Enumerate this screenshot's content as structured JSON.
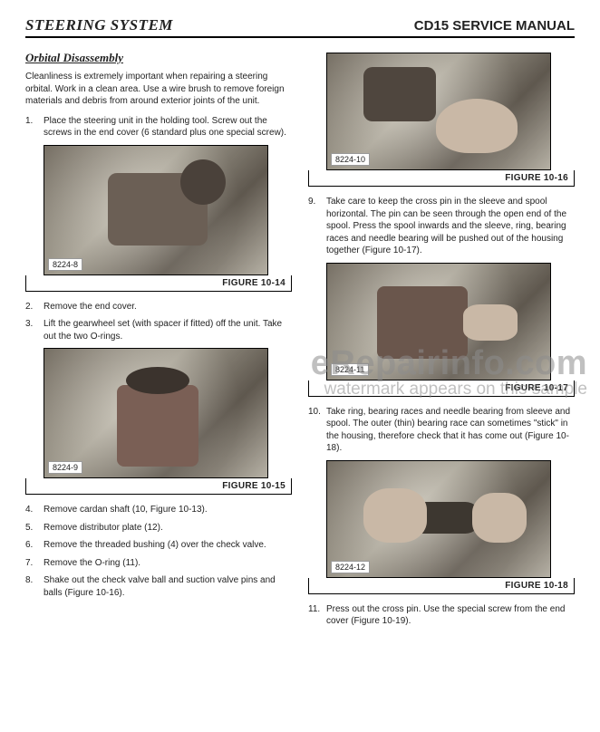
{
  "header": {
    "left": "STEERING SYSTEM",
    "right": "CD15 SERVICE MANUAL"
  },
  "subsection_title": "Orbital Disassembly",
  "intro_text": "Cleanliness is extremely important when repairing a steering orbital. Work in a clean area. Use a wire brush to remove foreign materials and debris from around exterior joints of the unit.",
  "left_steps_a": [
    {
      "num": "1.",
      "text": "Place the steering unit in the holding tool. Screw out the screws in the end cover (6 standard plus one special screw)."
    }
  ],
  "left_steps_b": [
    {
      "num": "2.",
      "text": "Remove the end cover."
    },
    {
      "num": "3.",
      "text": "Lift the gearwheel set (with spacer if fitted) off the unit. Take out the two O-rings."
    }
  ],
  "left_steps_c": [
    {
      "num": "4.",
      "text": "Remove cardan shaft (10, Figure 10-13)."
    },
    {
      "num": "5.",
      "text": "Remove distributor plate (12)."
    },
    {
      "num": "6.",
      "text": "Remove the threaded bushing (4) over the check valve."
    },
    {
      "num": "7.",
      "text": "Remove the O-ring (11)."
    },
    {
      "num": "8.",
      "text": "Shake out the check valve ball and suction valve pins and balls (Figure 10-16)."
    }
  ],
  "right_steps_a": [
    {
      "num": "9.",
      "text": "Take care to keep the cross pin in the sleeve and spool horizontal. The pin can be seen through the open end of the spool. Press the spool inwards and the sleeve, ring, bearing races and needle bearing will be pushed out of the housing together (Figure 10-17)."
    }
  ],
  "right_steps_b": [
    {
      "num": "10.",
      "text": "Take ring, bearing races and needle bearing from sleeve and spool. The outer (thin) bearing race can sometimes \"stick\" in the housing, therefore check that it has come out (Figure 10-18)."
    }
  ],
  "right_steps_c": [
    {
      "num": "11.",
      "text": "Press out the cross pin. Use the special screw from the end cover (Figure 10-19)."
    }
  ],
  "figures": {
    "f14": {
      "caption": "FIGURE 10-14",
      "label": "8224-8"
    },
    "f15": {
      "caption": "FIGURE 10-15",
      "label": "8224-9"
    },
    "f16": {
      "caption": "FIGURE 10-16",
      "label": "8224-10"
    },
    "f17": {
      "caption": "FIGURE 10-17",
      "label": "8224-11"
    },
    "f18": {
      "caption": "FIGURE 10-18",
      "label": "8224-12"
    }
  },
  "watermark": {
    "main": "eRepairinfo.com",
    "sub": "watermark appears on this sample"
  }
}
